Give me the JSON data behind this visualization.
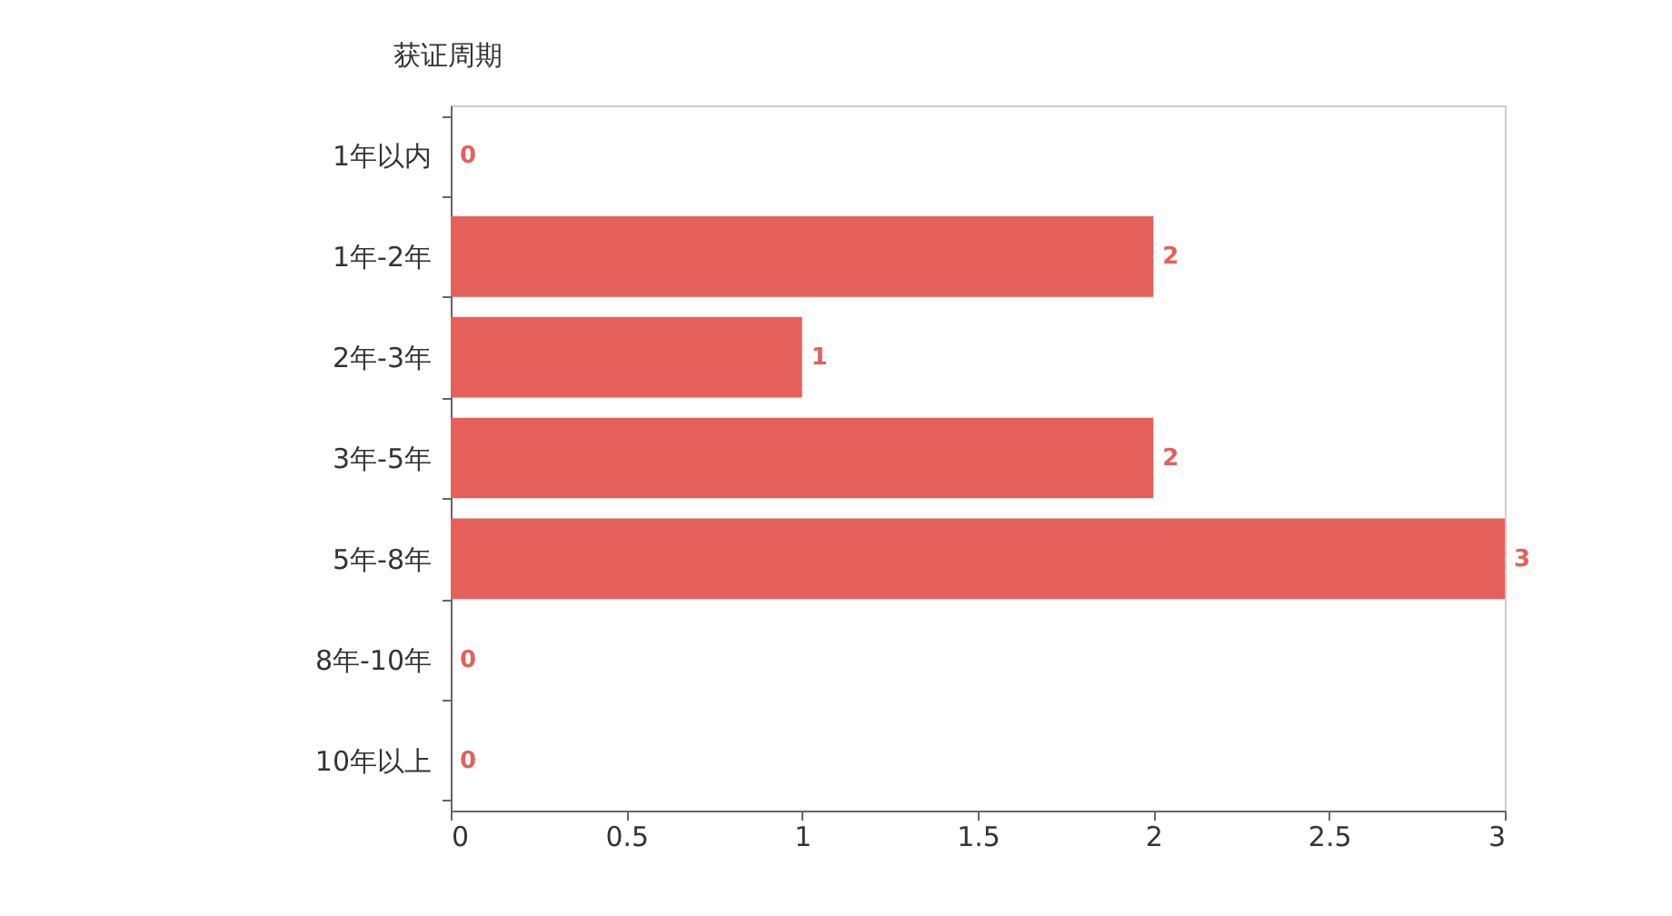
{
  "chart_data": {
    "type": "bar",
    "orientation": "horizontal",
    "ylabel": "获证周期",
    "categories": [
      "1年以内",
      "1年-2年",
      "2年-3年",
      "3年-5年",
      "5年-8年",
      "8年-10年",
      "10年以上"
    ],
    "values": [
      0,
      2,
      1,
      2,
      3,
      0,
      0
    ],
    "color": "#e5605a",
    "xlim": [
      0,
      3
    ],
    "xticks": [
      0,
      0.5,
      1,
      1.5,
      2,
      2.5,
      3
    ],
    "grid": false,
    "data_labels": true
  }
}
